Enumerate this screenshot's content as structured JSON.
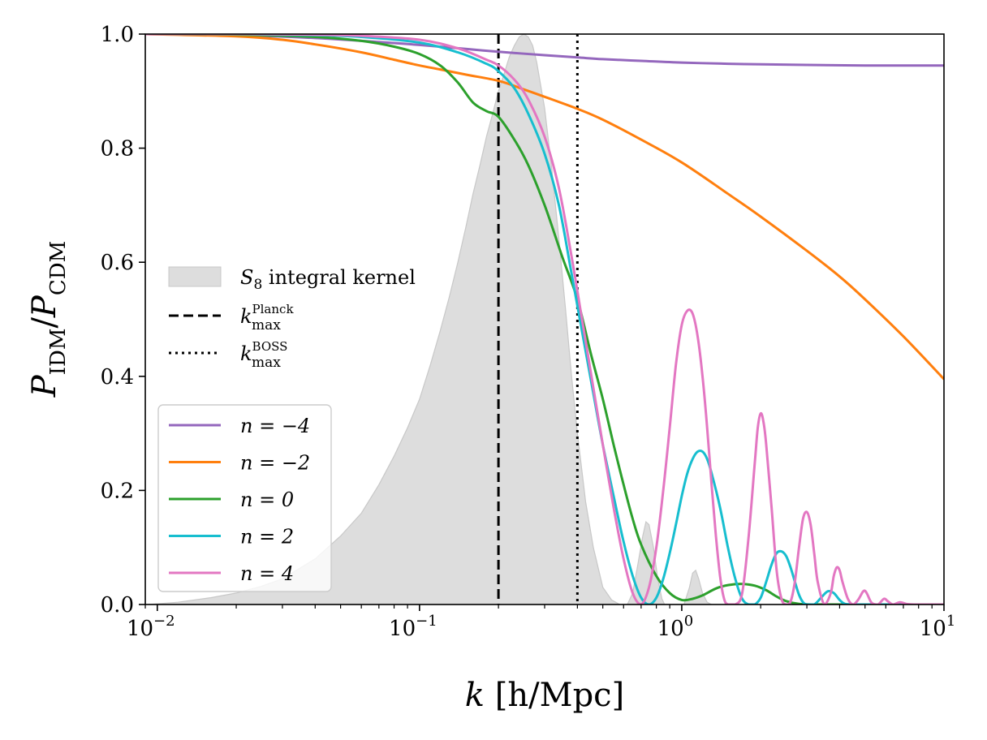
{
  "chart_data": {
    "type": "line",
    "x_label": {
      "var": "k",
      "unit": "[h/Mpc]"
    },
    "y_label": {
      "var": "P",
      "sub_num": "IDM",
      "sub_den": "CDM"
    },
    "x_scale": "log",
    "xlim": [
      0.009,
      10
    ],
    "ylim": [
      0,
      1
    ],
    "x_ticks": [
      {
        "value": 0.01,
        "label": "10",
        "exp": "−2"
      },
      {
        "value": 0.1,
        "label": "10",
        "exp": "−1"
      },
      {
        "value": 1,
        "label": "10",
        "exp": "0"
      },
      {
        "value": 10,
        "label": "10",
        "exp": "1"
      }
    ],
    "y_ticks": [
      "0.0",
      "0.2",
      "0.4",
      "0.6",
      "0.8",
      "1.0"
    ],
    "legend_top": {
      "placement": "center-left",
      "entries": [
        {
          "label": "S",
          "sub": "8",
          "rest": " integral kernel"
        },
        {
          "label": "k",
          "sup": "Planck",
          "sub": "max"
        },
        {
          "label": "k",
          "sup": "BOSS",
          "sub": "max"
        }
      ]
    },
    "legend_series_placement": "lower-left",
    "vlines": [
      {
        "name": "k_planck",
        "x": 0.2,
        "style": "dashed",
        "color": "#000000"
      },
      {
        "name": "k_boss",
        "x": 0.4,
        "style": "dotted",
        "color": "#000000"
      }
    ],
    "kernel": {
      "color": "#dddddd",
      "edge": "#c8c8c8",
      "x": [
        0.0092,
        0.012,
        0.016,
        0.02,
        0.025,
        0.03,
        0.04,
        0.05,
        0.06,
        0.07,
        0.08,
        0.09,
        0.1,
        0.11,
        0.12,
        0.13,
        0.14,
        0.15,
        0.16,
        0.17,
        0.18,
        0.19,
        0.2,
        0.21,
        0.22,
        0.23,
        0.24,
        0.25,
        0.26,
        0.27,
        0.28,
        0.3,
        0.32,
        0.34,
        0.36,
        0.38,
        0.4,
        0.43,
        0.46,
        0.5,
        0.54,
        0.58,
        0.62,
        0.65,
        0.68,
        0.71,
        0.73,
        0.75,
        0.78,
        0.81,
        0.84,
        0.86,
        0.89,
        0.95,
        1.02,
        1.07,
        1.1,
        1.13,
        1.16,
        1.2,
        1.25,
        1.3
      ],
      "y": [
        0.0,
        0.004,
        0.012,
        0.02,
        0.032,
        0.045,
        0.08,
        0.12,
        0.16,
        0.21,
        0.26,
        0.31,
        0.36,
        0.42,
        0.48,
        0.54,
        0.6,
        0.66,
        0.72,
        0.77,
        0.82,
        0.86,
        0.9,
        0.93,
        0.96,
        0.98,
        0.995,
        1.0,
        0.995,
        0.98,
        0.95,
        0.87,
        0.76,
        0.64,
        0.52,
        0.4,
        0.3,
        0.18,
        0.1,
        0.03,
        0.008,
        0.0,
        0.0,
        0.02,
        0.07,
        0.12,
        0.145,
        0.14,
        0.1,
        0.045,
        0.01,
        0.0,
        0.0,
        0.0,
        0.0,
        0.03,
        0.055,
        0.06,
        0.045,
        0.02,
        0.004,
        0.0
      ]
    },
    "series": [
      {
        "name": "n = −4",
        "color": "#9467bd",
        "x": [
          0.009,
          0.02,
          0.04,
          0.07,
          0.1,
          0.15,
          0.2,
          0.3,
          0.4,
          0.5,
          0.7,
          1,
          1.5,
          2,
          3,
          5,
          10
        ],
        "y": [
          1.0,
          0.998,
          0.993,
          0.986,
          0.981,
          0.974,
          0.969,
          0.963,
          0.959,
          0.956,
          0.953,
          0.95,
          0.948,
          0.947,
          0.946,
          0.945,
          0.945
        ]
      },
      {
        "name": "n = −2",
        "color": "#ff7f0e",
        "x": [
          0.009,
          0.02,
          0.03,
          0.04,
          0.06,
          0.08,
          0.1,
          0.12,
          0.15,
          0.2,
          0.25,
          0.3,
          0.4,
          0.5,
          0.7,
          1,
          1.5,
          2,
          3,
          4,
          5,
          7,
          10
        ],
        "y": [
          1.0,
          0.996,
          0.99,
          0.982,
          0.968,
          0.955,
          0.945,
          0.938,
          0.929,
          0.918,
          0.903,
          0.89,
          0.869,
          0.85,
          0.815,
          0.775,
          0.72,
          0.68,
          0.62,
          0.575,
          0.535,
          0.47,
          0.395
        ]
      },
      {
        "name": "n = 0",
        "color": "#2ca02c",
        "x": [
          0.009,
          0.02,
          0.04,
          0.06,
          0.08,
          0.1,
          0.12,
          0.14,
          0.16,
          0.18,
          0.2,
          0.23,
          0.26,
          0.3,
          0.35,
          0.4,
          0.45,
          0.5,
          0.55,
          0.6,
          0.65,
          0.7,
          0.8,
          0.9,
          1.0,
          1.1,
          1.2,
          1.35,
          1.5,
          1.7,
          1.9,
          2.1,
          2.3,
          2.5,
          2.8,
          3.2,
          4,
          6,
          10
        ],
        "y": [
          1.0,
          0.999,
          0.995,
          0.988,
          0.978,
          0.965,
          0.945,
          0.915,
          0.88,
          0.865,
          0.855,
          0.815,
          0.77,
          0.7,
          0.61,
          0.535,
          0.44,
          0.36,
          0.28,
          0.21,
          0.15,
          0.105,
          0.05,
          0.02,
          0.008,
          0.01,
          0.016,
          0.028,
          0.034,
          0.036,
          0.033,
          0.025,
          0.014,
          0.006,
          0.001,
          0.0,
          0.0,
          0.0,
          0.0
        ]
      },
      {
        "name": "n = 2",
        "color": "#17becf",
        "x": [
          0.009,
          0.02,
          0.04,
          0.06,
          0.1,
          0.14,
          0.18,
          0.2,
          0.23,
          0.26,
          0.3,
          0.34,
          0.38,
          0.42,
          0.46,
          0.5,
          0.55,
          0.6,
          0.65,
          0.7,
          0.75,
          0.8,
          0.85,
          0.9,
          0.95,
          1.0,
          1.05,
          1.1,
          1.15,
          1.2,
          1.25,
          1.3,
          1.4,
          1.5,
          1.6,
          1.7,
          1.8,
          1.9,
          2.0,
          2.1,
          2.2,
          2.3,
          2.4,
          2.5,
          2.6,
          2.7,
          2.8,
          2.9,
          3.0,
          3.2,
          3.4,
          3.6,
          3.8,
          4.0,
          4.2,
          4.6,
          5.0,
          6,
          10
        ],
        "y": [
          1.0,
          1.0,
          0.998,
          0.995,
          0.985,
          0.968,
          0.948,
          0.935,
          0.905,
          0.86,
          0.79,
          0.7,
          0.58,
          0.47,
          0.37,
          0.28,
          0.19,
          0.11,
          0.05,
          0.012,
          0.0,
          0.012,
          0.045,
          0.09,
          0.14,
          0.19,
          0.23,
          0.255,
          0.268,
          0.268,
          0.255,
          0.23,
          0.17,
          0.1,
          0.045,
          0.01,
          0.0,
          0.0,
          0.012,
          0.04,
          0.07,
          0.09,
          0.093,
          0.085,
          0.065,
          0.04,
          0.017,
          0.004,
          0.0,
          0.0,
          0.012,
          0.023,
          0.02,
          0.008,
          0.001,
          0.0,
          0.0,
          0.0,
          0.0
        ]
      },
      {
        "name": "n = 4",
        "color": "#e377c2",
        "x": [
          0.009,
          0.02,
          0.04,
          0.06,
          0.1,
          0.14,
          0.18,
          0.2,
          0.23,
          0.26,
          0.3,
          0.34,
          0.38,
          0.42,
          0.46,
          0.5,
          0.55,
          0.6,
          0.65,
          0.7,
          0.75,
          0.8,
          0.85,
          0.9,
          0.95,
          1.0,
          1.05,
          1.1,
          1.15,
          1.2,
          1.25,
          1.3,
          1.35,
          1.4,
          1.45,
          1.5,
          1.6,
          1.7,
          1.8,
          1.9,
          1.95,
          2.0,
          2.05,
          2.1,
          2.2,
          2.3,
          2.4,
          2.5,
          2.6,
          2.7,
          2.8,
          2.9,
          3.0,
          3.1,
          3.2,
          3.3,
          3.5,
          3.7,
          3.8,
          3.9,
          4.0,
          4.1,
          4.3,
          4.5,
          4.7,
          4.9,
          5.0,
          5.1,
          5.3,
          5.6,
          5.9,
          6.1,
          6.4,
          6.8,
          7.2,
          8,
          10
        ],
        "y": [
          1.0,
          1.0,
          0.999,
          0.997,
          0.99,
          0.975,
          0.955,
          0.945,
          0.92,
          0.885,
          0.82,
          0.73,
          0.61,
          0.49,
          0.38,
          0.28,
          0.17,
          0.08,
          0.02,
          0.0,
          0.03,
          0.1,
          0.2,
          0.31,
          0.42,
          0.49,
          0.515,
          0.51,
          0.47,
          0.4,
          0.31,
          0.21,
          0.12,
          0.05,
          0.01,
          0.0,
          0.0,
          0.02,
          0.12,
          0.25,
          0.31,
          0.335,
          0.32,
          0.28,
          0.17,
          0.06,
          0.01,
          0.0,
          0.005,
          0.04,
          0.1,
          0.15,
          0.162,
          0.14,
          0.09,
          0.04,
          0.0,
          0.02,
          0.05,
          0.065,
          0.06,
          0.04,
          0.01,
          0.0,
          0.008,
          0.022,
          0.024,
          0.018,
          0.003,
          0.0,
          0.01,
          0.006,
          0.0,
          0.004,
          0.001,
          0.0,
          0.0
        ]
      }
    ]
  }
}
